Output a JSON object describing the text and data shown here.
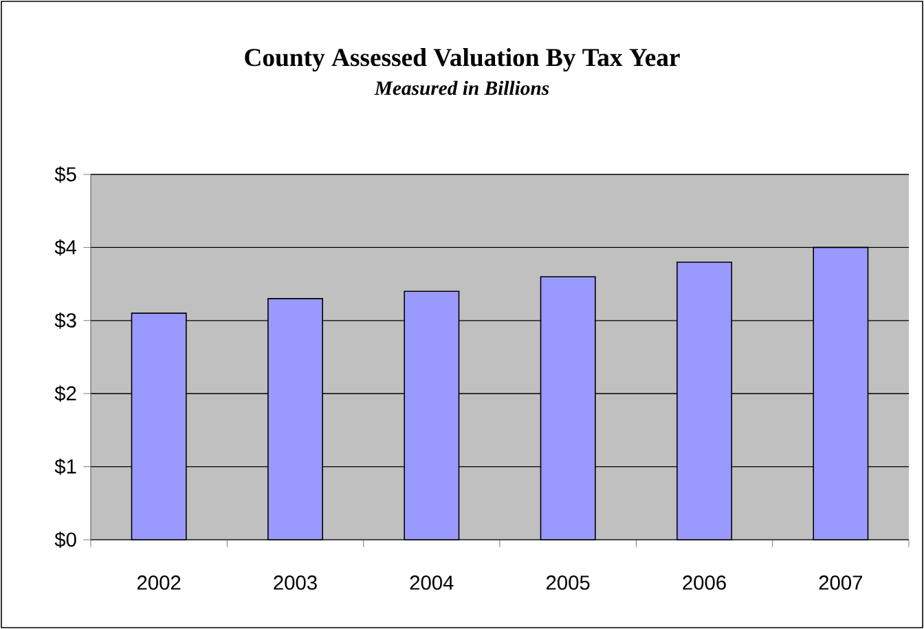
{
  "chart_data": {
    "type": "bar",
    "title": "County Assessed Valuation By Tax Year",
    "subtitle": "Measured in Billions",
    "categories": [
      "2002",
      "2003",
      "2004",
      "2005",
      "2006",
      "2007"
    ],
    "values": [
      3.1,
      3.3,
      3.4,
      3.6,
      3.8,
      4.0
    ],
    "color": "#9999ff",
    "ylim": [
      0,
      5
    ],
    "yticks": [
      {
        "value": 0,
        "label": "$0"
      },
      {
        "value": 1,
        "label": "$1"
      },
      {
        "value": 2,
        "label": "$2"
      },
      {
        "value": 3,
        "label": "$3"
      },
      {
        "value": 4,
        "label": "$4"
      },
      {
        "value": 5,
        "label": "$5"
      }
    ],
    "grid": "y"
  }
}
